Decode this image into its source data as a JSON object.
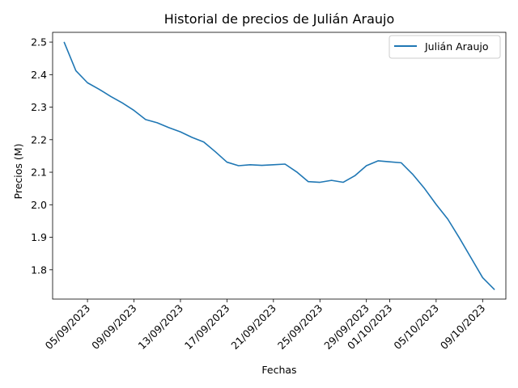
{
  "chart_data": {
    "type": "line",
    "title": "Historial de precios de Julián Araujo",
    "xlabel": "Fechas",
    "ylabel": "Precios (M)",
    "x_tick_labels": [
      "05/09/2023",
      "09/09/2023",
      "13/09/2023",
      "17/09/2023",
      "21/09/2023",
      "25/09/2023",
      "29/09/2023",
      "01/10/2023",
      "05/10/2023",
      "09/10/2023"
    ],
    "y_tick_labels": [
      "1.8",
      "1.9",
      "2.0",
      "2.1",
      "2.2",
      "2.3",
      "2.4",
      "2.5"
    ],
    "ylim": [
      1.71,
      2.53
    ],
    "xlim": [
      "2023-09-02",
      "2023-10-11"
    ],
    "legend": {
      "position": "top-right"
    },
    "grid": false,
    "series": [
      {
        "name": "Julián Araujo",
        "color": "#1f77b4",
        "x": [
          "2023-09-03",
          "2023-09-04",
          "2023-09-05",
          "2023-09-06",
          "2023-09-07",
          "2023-09-08",
          "2023-09-09",
          "2023-09-10",
          "2023-09-11",
          "2023-09-12",
          "2023-09-13",
          "2023-09-14",
          "2023-09-15",
          "2023-09-16",
          "2023-09-17",
          "2023-09-18",
          "2023-09-19",
          "2023-09-20",
          "2023-09-21",
          "2023-09-22",
          "2023-09-23",
          "2023-09-24",
          "2023-09-25",
          "2023-09-26",
          "2023-09-27",
          "2023-09-28",
          "2023-09-29",
          "2023-09-30",
          "2023-10-01",
          "2023-10-02",
          "2023-10-03",
          "2023-10-04",
          "2023-10-05",
          "2023-10-06",
          "2023-10-07",
          "2023-10-08",
          "2023-10-09",
          "2023-10-10"
        ],
        "values": [
          2.499,
          2.412,
          2.375,
          2.355,
          2.333,
          2.313,
          2.29,
          2.262,
          2.252,
          2.237,
          2.224,
          2.207,
          2.193,
          2.163,
          2.131,
          2.12,
          2.123,
          2.121,
          2.123,
          2.125,
          2.101,
          2.071,
          2.069,
          2.075,
          2.069,
          2.089,
          2.12,
          2.135,
          2.132,
          2.129,
          2.093,
          2.05,
          2.001,
          1.956,
          1.898,
          1.837,
          1.776,
          1.74
        ]
      }
    ]
  }
}
